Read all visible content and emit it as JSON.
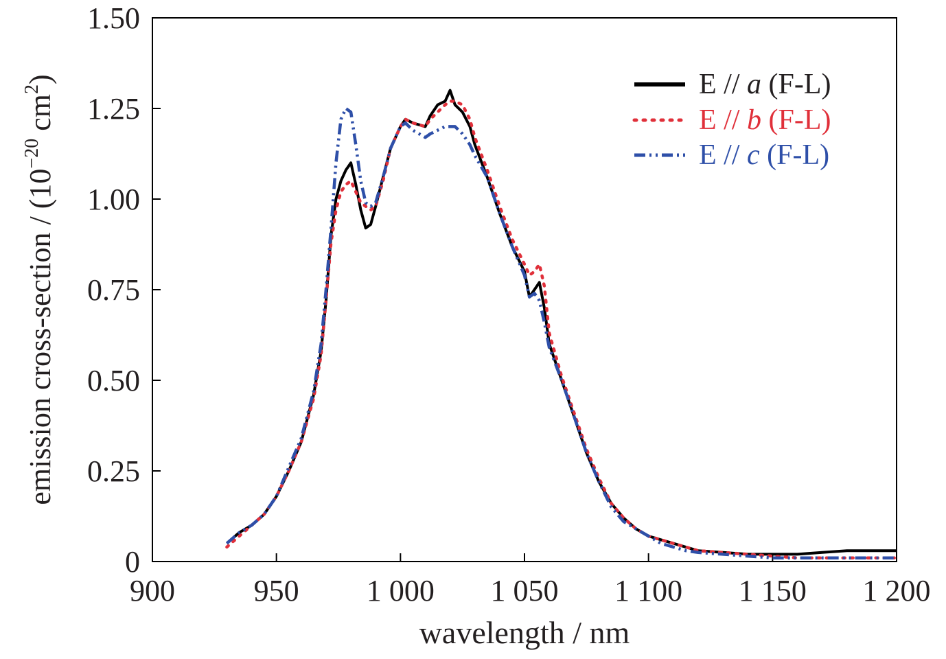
{
  "chart_data": {
    "type": "line",
    "xlabel": "wavelength / nm",
    "ylabel": {
      "main": "emission cross-section / (10",
      "exp": "−20",
      "mid": " cm",
      "exp2": "2",
      "end": ")"
    },
    "xlim": [
      900,
      1200
    ],
    "ylim": [
      0,
      1.5
    ],
    "x_ticks": [
      {
        "value": 900,
        "label": "900"
      },
      {
        "value": 950,
        "label": "950"
      },
      {
        "value": 1000,
        "label": "1 000"
      },
      {
        "value": 1050,
        "label": "1 050"
      },
      {
        "value": 1100,
        "label": "1 100"
      },
      {
        "value": 1150,
        "label": "1 150"
      },
      {
        "value": 1200,
        "label": "1 200"
      }
    ],
    "y_ticks": [
      {
        "value": 0,
        "label": "0"
      },
      {
        "value": 0.25,
        "label": "0.25"
      },
      {
        "value": 0.5,
        "label": "0.50"
      },
      {
        "value": 0.75,
        "label": "0.75"
      },
      {
        "value": 1.0,
        "label": "1.00"
      },
      {
        "value": 1.25,
        "label": "1.25"
      },
      {
        "value": 1.5,
        "label": "1.50"
      }
    ],
    "grid": false,
    "legend_position": "top-right",
    "series": [
      {
        "key": "a",
        "legend_prefix": "E // ",
        "legend_italic": "a",
        "legend_suffix": " (F-L)",
        "color": "#000000",
        "style": "solid",
        "x": [
          930,
          935,
          940,
          945,
          950,
          955,
          960,
          965,
          968,
          970,
          972,
          974,
          976,
          978,
          980,
          982,
          984,
          986,
          988,
          990,
          993,
          996,
          1000,
          1002,
          1005,
          1010,
          1012,
          1015,
          1018,
          1020,
          1022,
          1025,
          1028,
          1030,
          1035,
          1040,
          1045,
          1050,
          1052,
          1054,
          1056,
          1058,
          1060,
          1065,
          1070,
          1075,
          1080,
          1085,
          1090,
          1095,
          1100,
          1105,
          1110,
          1115,
          1120,
          1130,
          1140,
          1150,
          1160,
          1170,
          1180,
          1190,
          1200
        ],
        "y": [
          0.05,
          0.08,
          0.1,
          0.13,
          0.18,
          0.25,
          0.33,
          0.46,
          0.58,
          0.72,
          0.9,
          1.0,
          1.05,
          1.08,
          1.1,
          1.04,
          0.97,
          0.92,
          0.93,
          0.98,
          1.06,
          1.14,
          1.2,
          1.22,
          1.21,
          1.2,
          1.23,
          1.26,
          1.27,
          1.3,
          1.26,
          1.24,
          1.2,
          1.15,
          1.06,
          0.96,
          0.87,
          0.8,
          0.73,
          0.75,
          0.77,
          0.7,
          0.6,
          0.5,
          0.4,
          0.3,
          0.22,
          0.16,
          0.12,
          0.09,
          0.07,
          0.06,
          0.05,
          0.04,
          0.03,
          0.025,
          0.02,
          0.02,
          0.02,
          0.025,
          0.03,
          0.03,
          0.03
        ]
      },
      {
        "key": "b",
        "legend_prefix": "E // ",
        "legend_italic": "b",
        "legend_suffix": " (F-L)",
        "color": "#e0303a",
        "style": "dotted",
        "x": [
          930,
          935,
          940,
          945,
          950,
          955,
          960,
          965,
          968,
          970,
          972,
          974,
          976,
          978,
          980,
          982,
          984,
          986,
          988,
          990,
          993,
          996,
          1000,
          1002,
          1005,
          1010,
          1012,
          1015,
          1018,
          1020,
          1022,
          1025,
          1028,
          1030,
          1035,
          1040,
          1045,
          1050,
          1052,
          1054,
          1056,
          1058,
          1060,
          1065,
          1070,
          1075,
          1080,
          1085,
          1090,
          1095,
          1100,
          1105,
          1110,
          1115,
          1120,
          1130,
          1140,
          1150,
          1160,
          1170,
          1180,
          1190,
          1200
        ],
        "y": [
          0.04,
          0.07,
          0.1,
          0.13,
          0.18,
          0.25,
          0.33,
          0.45,
          0.57,
          0.72,
          0.88,
          0.97,
          1.02,
          1.04,
          1.05,
          1.02,
          0.99,
          0.98,
          0.97,
          0.98,
          1.05,
          1.14,
          1.2,
          1.22,
          1.21,
          1.2,
          1.22,
          1.24,
          1.26,
          1.27,
          1.27,
          1.26,
          1.22,
          1.17,
          1.08,
          0.98,
          0.89,
          0.82,
          0.79,
          0.8,
          0.82,
          0.76,
          0.63,
          0.51,
          0.41,
          0.31,
          0.23,
          0.16,
          0.12,
          0.09,
          0.07,
          0.06,
          0.05,
          0.04,
          0.03,
          0.025,
          0.02,
          0.015,
          0.01,
          0.01,
          0.01,
          0.01,
          0.01
        ]
      },
      {
        "key": "c",
        "legend_prefix": "E // ",
        "legend_italic": "c",
        "legend_suffix": " (F-L)",
        "color": "#2e4fa8",
        "style": "dashdot",
        "x": [
          930,
          935,
          940,
          945,
          950,
          955,
          960,
          965,
          968,
          970,
          972,
          974,
          976,
          978,
          980,
          982,
          984,
          986,
          988,
          990,
          993,
          996,
          1000,
          1002,
          1005,
          1010,
          1012,
          1015,
          1018,
          1020,
          1022,
          1025,
          1028,
          1030,
          1035,
          1040,
          1045,
          1050,
          1052,
          1054,
          1056,
          1058,
          1060,
          1065,
          1070,
          1075,
          1080,
          1085,
          1090,
          1095,
          1100,
          1105,
          1110,
          1115,
          1120,
          1130,
          1140,
          1150,
          1160,
          1170,
          1180,
          1190,
          1200
        ],
        "y": [
          0.05,
          0.08,
          0.1,
          0.13,
          0.18,
          0.26,
          0.34,
          0.47,
          0.6,
          0.75,
          0.92,
          1.1,
          1.22,
          1.25,
          1.24,
          1.15,
          1.05,
          0.99,
          0.98,
          0.99,
          1.06,
          1.14,
          1.2,
          1.21,
          1.19,
          1.17,
          1.18,
          1.19,
          1.2,
          1.2,
          1.2,
          1.18,
          1.15,
          1.12,
          1.06,
          0.96,
          0.87,
          0.79,
          0.73,
          0.74,
          0.72,
          0.66,
          0.59,
          0.5,
          0.4,
          0.3,
          0.22,
          0.15,
          0.11,
          0.09,
          0.07,
          0.05,
          0.04,
          0.03,
          0.025,
          0.02,
          0.015,
          0.01,
          0.01,
          0.01,
          0.01,
          0.01,
          0.01
        ]
      }
    ]
  }
}
